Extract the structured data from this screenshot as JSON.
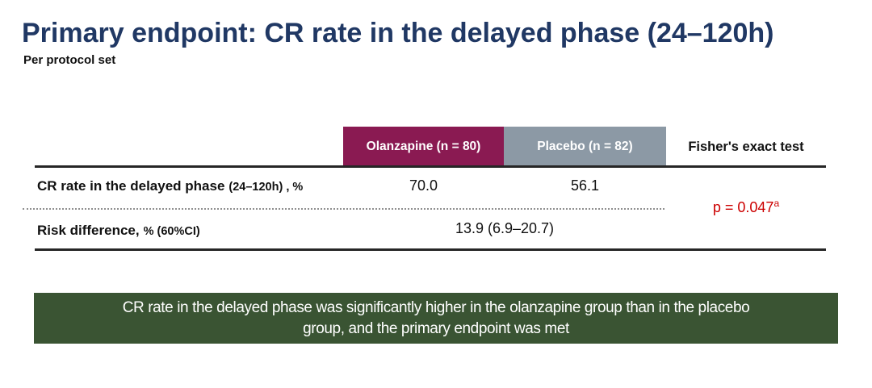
{
  "title": "Primary endpoint: CR rate in the delayed phase (24–120h)",
  "subtitle": "Per protocol set",
  "table": {
    "columns": [
      {
        "label": "Olanzapine (n = 80)",
        "bg": "#8A1A52"
      },
      {
        "label": "Placebo (n = 82)",
        "bg": "#8C99A5"
      },
      {
        "label": "Fisher's exact test",
        "bg": "transparent"
      }
    ],
    "rows": [
      {
        "label_main": "CR rate in the delayed phase",
        "label_detail": "(24–120h) , %",
        "olanzapine": "70.0",
        "placebo": "56.1"
      },
      {
        "label_main": "Risk difference,",
        "label_detail": "% (60%CI)",
        "combined": "13.9 (6.9–20.7)"
      }
    ],
    "p_value": {
      "text": "p = 0.047",
      "superscript": "a"
    }
  },
  "banner": {
    "line1": "CR rate in the delayed phase was significantly higher in the olanzapine group than in the placebo",
    "line2": "group, and the primary endpoint was met"
  },
  "colors": {
    "title_navy": "#203864",
    "olanzapine_maroon": "#8A1A52",
    "placebo_gray": "#8C99A5",
    "p_value_red": "#CC0000",
    "banner_green": "#3A5433",
    "rule_dark": "#262626"
  }
}
